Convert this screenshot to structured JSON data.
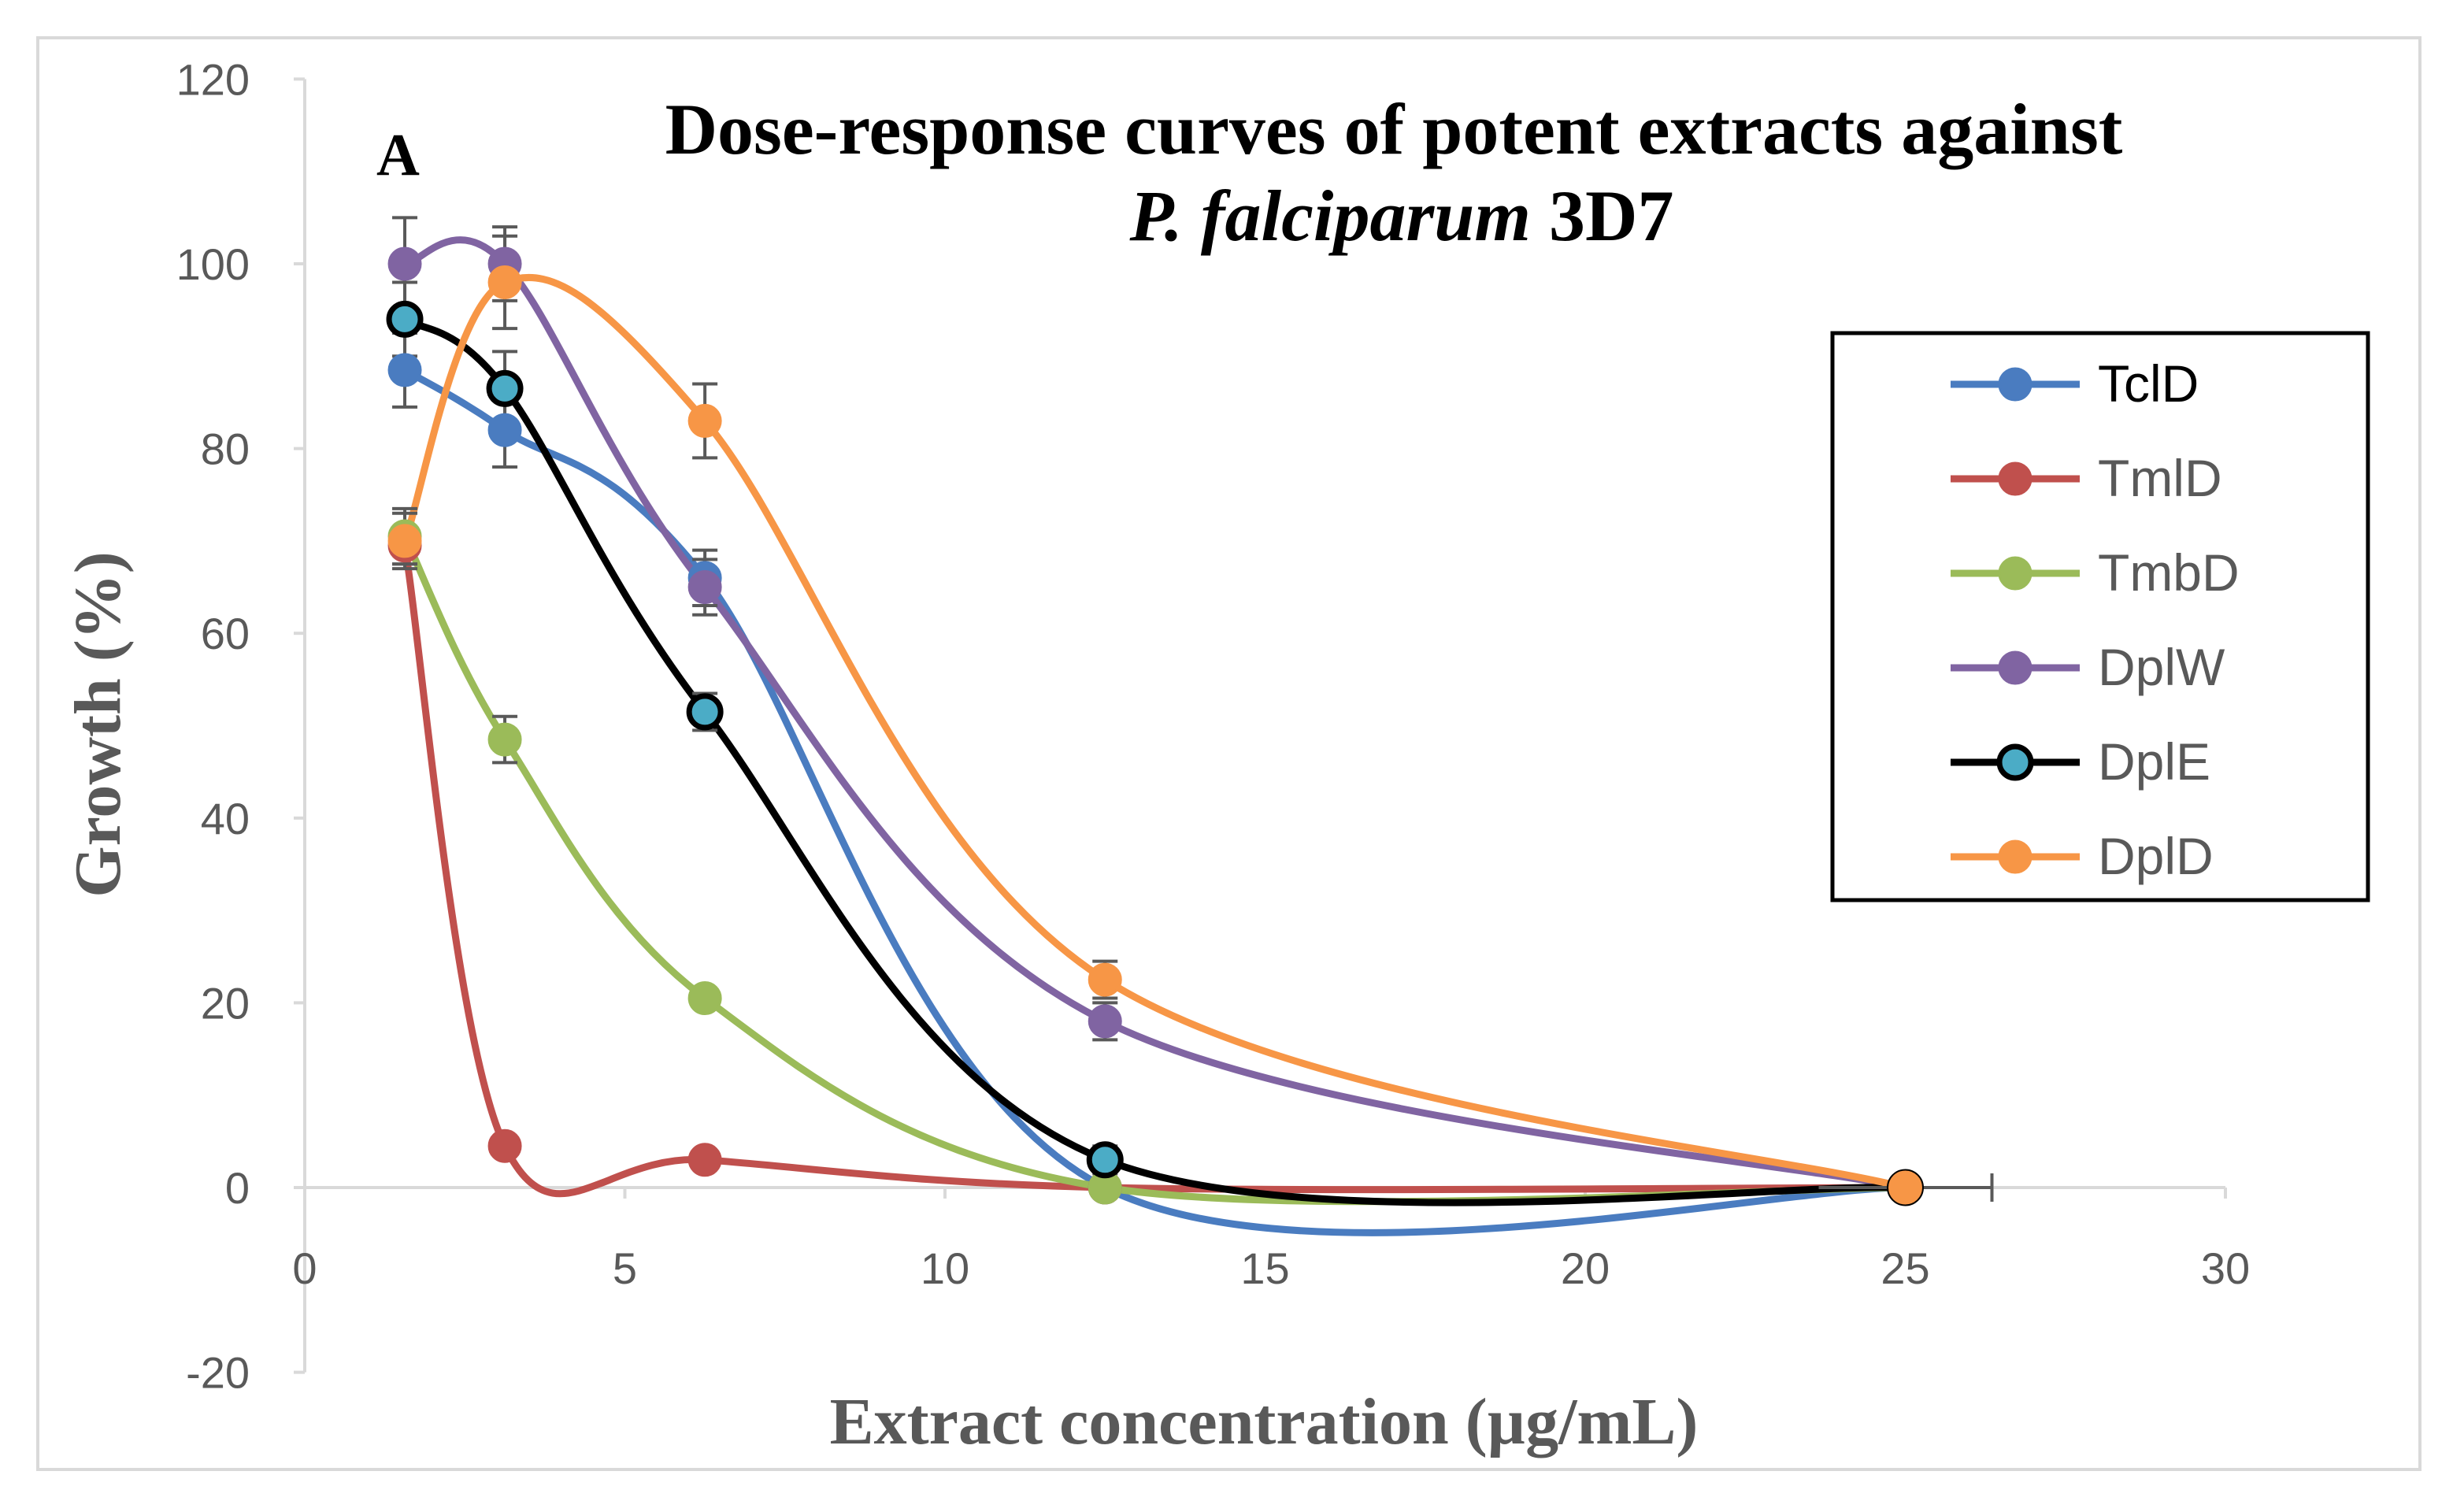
{
  "chart_data": {
    "type": "line",
    "panel_label": "A",
    "title_line1": "Dose-response curves of potent extracts against",
    "title_line2_italic": "P. falciparum",
    "title_line2_rest": " 3D7",
    "xlabel": "Extract concentration (µg/mL)",
    "ylabel": "Growth (%)",
    "xlim": [
      0,
      30
    ],
    "ylim": [
      -20,
      120
    ],
    "xticks": [
      0,
      5,
      10,
      15,
      20,
      25,
      30
    ],
    "yticks": [
      -20,
      0,
      20,
      40,
      60,
      80,
      100,
      120
    ],
    "x": [
      1.5625,
      3.125,
      6.25,
      12.5,
      25
    ],
    "legend_position": "right",
    "series": [
      {
        "name": "TclD",
        "values": [
          88.5,
          82,
          66,
          0,
          0
        ],
        "errors": [
          4,
          4,
          3,
          0,
          0
        ],
        "line_color": "#4a7cc0",
        "marker_fill": "#4a7cc0",
        "marker_edge": "#4a7cc0"
      },
      {
        "name": "TmlD",
        "values": [
          69.5,
          4.5,
          3,
          0,
          0
        ],
        "errors": [
          2,
          0,
          1,
          0,
          0
        ],
        "line_color": "#c0504d",
        "marker_fill": "#c0504d",
        "marker_edge": "#c0504d"
      },
      {
        "name": "TmbD",
        "values": [
          70.5,
          48.5,
          20.5,
          0,
          0
        ],
        "errors": [
          3,
          2.5,
          1,
          0,
          0
        ],
        "line_color": "#9bbb59",
        "marker_fill": "#9bbb59",
        "marker_edge": "#9bbb59"
      },
      {
        "name": "DplW",
        "values": [
          100,
          100,
          65,
          18,
          0
        ],
        "errors": [
          5,
          4,
          3,
          2,
          0
        ],
        "line_color": "#8064a2",
        "marker_fill": "#8064a2",
        "marker_edge": "#8064a2"
      },
      {
        "name": "DplE",
        "values": [
          94,
          86.5,
          51.5,
          3,
          0
        ],
        "errors": [
          4,
          4,
          2,
          1.5,
          0
        ],
        "line_color": "#000000",
        "marker_fill": "#4bacc6",
        "marker_edge": "#000000"
      },
      {
        "name": "DplD",
        "values": [
          70,
          98,
          83,
          22.5,
          0
        ],
        "errors": [
          3,
          5,
          4,
          2,
          0
        ],
        "line_color": "#f79646",
        "marker_fill": "#f79646",
        "marker_edge": "#f79646"
      }
    ]
  }
}
